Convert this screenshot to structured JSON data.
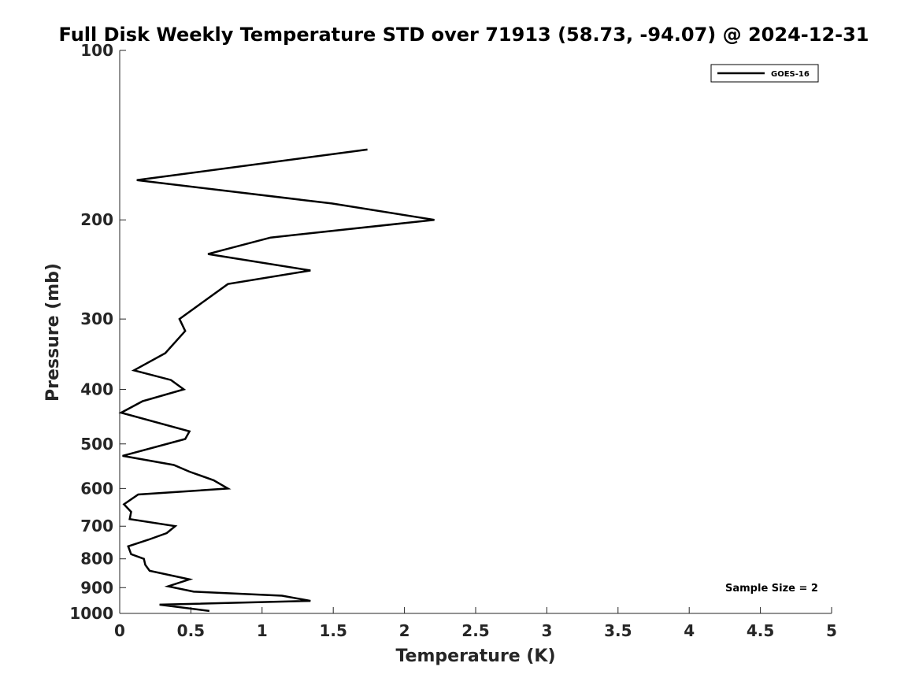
{
  "chart_data": {
    "type": "line",
    "title": "Full Disk Weekly Temperature STD over 71913 (58.73, -94.07) @ 2024-12-31",
    "xlabel": "Temperature (K)",
    "ylabel": "Pressure (mb)",
    "xlim": [
      0,
      5
    ],
    "ylim": [
      100,
      1000
    ],
    "y_scale": "log",
    "y_reversed": true,
    "x_ticks": [
      "0",
      "0.5",
      "1",
      "1.5",
      "2",
      "2.5",
      "3",
      "3.5",
      "4",
      "4.5",
      "5"
    ],
    "y_ticks": [
      "100",
      "200",
      "300",
      "400",
      "500",
      "600",
      "700",
      "800",
      "900",
      "1000"
    ],
    "grid": false,
    "legend_position": "top-right",
    "annotation": "Sample Size = 2",
    "series": [
      {
        "name": "GOES-16",
        "color": "#000000",
        "x": [
          1.74,
          0.12,
          1.49,
          2.21,
          1.06,
          0.62,
          1.34,
          0.76,
          0.42,
          0.46,
          0.32,
          0.1,
          0.36,
          0.45,
          0.16,
          0.01,
          0.49,
          0.46,
          0.02,
          0.38,
          0.49,
          0.66,
          0.76,
          0.13,
          0.03,
          0.08,
          0.07,
          0.39,
          0.33,
          0.2,
          0.06,
          0.08,
          0.17,
          0.18,
          0.21,
          0.49,
          0.34,
          0.52,
          1.14,
          1.34,
          0.28,
          0.63
        ],
        "y": [
          150,
          170,
          187,
          200,
          215,
          230,
          246,
          260,
          300,
          315,
          345,
          370,
          385,
          400,
          420,
          440,
          475,
          490,
          525,
          545,
          560,
          580,
          600,
          615,
          640,
          660,
          680,
          700,
          720,
          740,
          760,
          785,
          800,
          820,
          840,
          870,
          895,
          915,
          930,
          950,
          965,
          990
        ]
      }
    ]
  }
}
